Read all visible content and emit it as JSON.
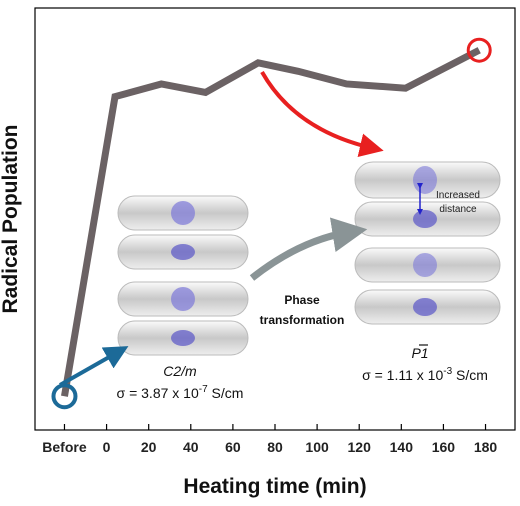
{
  "chart_data": {
    "type": "line",
    "x_label": "Heating time (min)",
    "y_label": "Radical Population",
    "x": [
      -20,
      4,
      26,
      47,
      72,
      91,
      114,
      142,
      177
    ],
    "series": [
      {
        "name": "Radical Population",
        "color": "#6b6264",
        "values": [
          8,
          79,
          82,
          80,
          87,
          85,
          82,
          81,
          90
        ]
      }
    ],
    "xlim": [
      -34,
      194
    ],
    "ylim": [
      0,
      100
    ],
    "xticks": [
      {
        "value": -20,
        "label": "Before"
      },
      0,
      20,
      40,
      60,
      80,
      100,
      120,
      140,
      160,
      180
    ],
    "annotations": {
      "phase_left": "C2/m",
      "sigma_left": [
        "σ = 3.87 x 10",
        "-7",
        " S/cm"
      ],
      "phase_right": "P1",
      "sigma_right": [
        "σ = 1.11 x 10",
        "-3",
        " S/cm"
      ],
      "transformation": [
        "Phase",
        "transformation"
      ],
      "distance": [
        "Increased",
        "distance"
      ]
    }
  }
}
